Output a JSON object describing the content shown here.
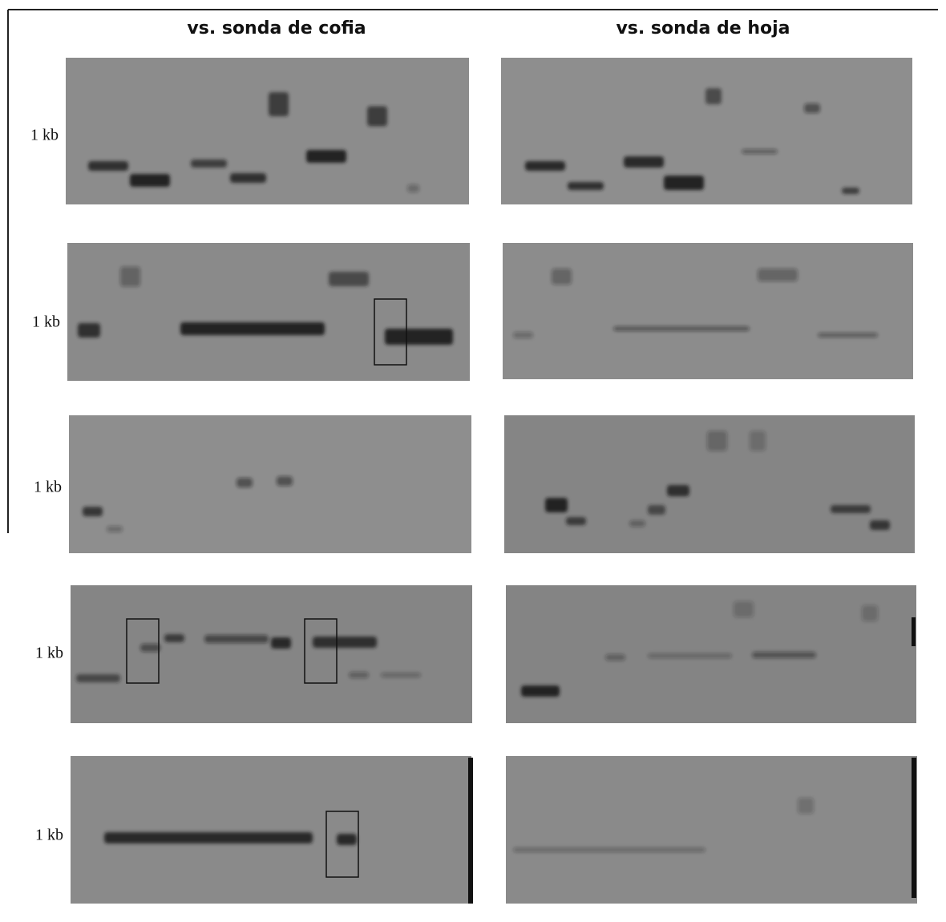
{
  "figure": {
    "column_titles": [
      "vs. sonda de cofia",
      "vs. sonda de hoja"
    ],
    "row_labels": [
      "1 kb",
      "1 kb",
      "1 kb",
      "1 kb",
      "1 kb"
    ]
  }
}
